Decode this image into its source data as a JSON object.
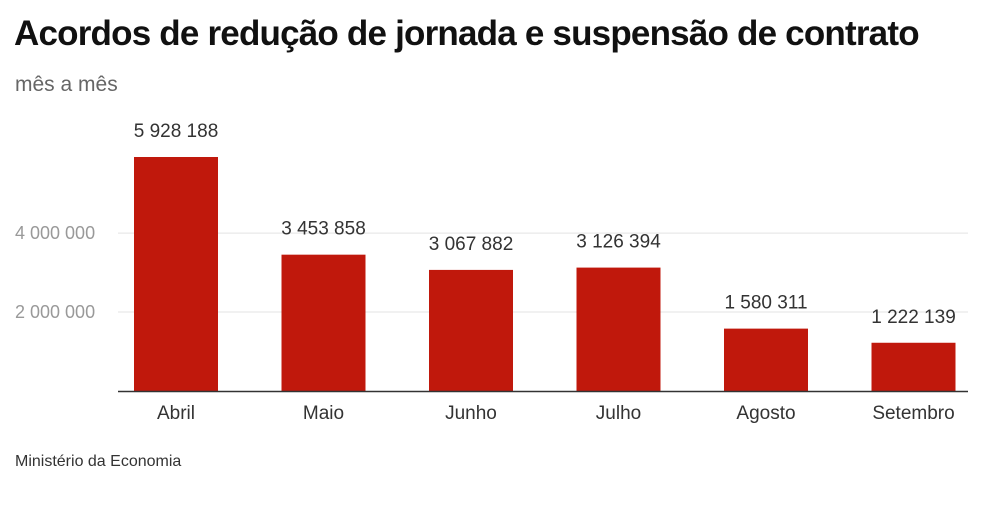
{
  "title": "Acordos de redução de jornada e suspensão de contrato",
  "subtitle": "mês a mês",
  "source": "Ministério da Economia",
  "colors": {
    "bar": "#c0180c",
    "grid": "#e3e3e3",
    "axis": "#333333"
  },
  "chart_data": {
    "type": "bar",
    "title": "Acordos de redução de jornada e suspensão de contrato",
    "subtitle": "mês a mês",
    "categories": [
      "Abril",
      "Maio",
      "Junho",
      "Julho",
      "Agosto",
      "Setembro"
    ],
    "values": [
      5928188,
      3453858,
      3067882,
      3126394,
      1580311,
      1222139
    ],
    "value_labels": [
      "5 928 188",
      "3 453 858",
      "3 067 882",
      "3 126 394",
      "1 580 311",
      "1 222 139"
    ],
    "yticks": [
      2000000,
      4000000
    ],
    "ytick_labels": [
      "2 000 000",
      "4 000 000"
    ],
    "xlabel": "",
    "ylabel": "",
    "ylim": [
      0,
      5928188
    ],
    "grid": true,
    "legend": "none"
  }
}
